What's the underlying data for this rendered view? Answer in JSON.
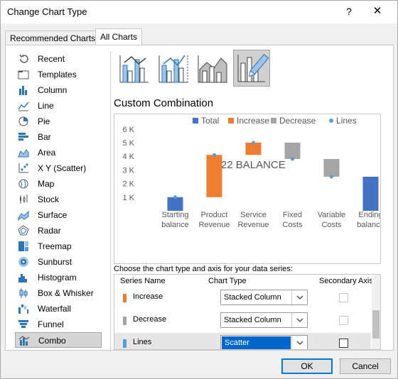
{
  "window": {
    "title": "Change Chart Type",
    "help": "?",
    "close": "✕"
  },
  "tabs": [
    {
      "label": "Recommended Charts"
    },
    {
      "label": "All Charts"
    }
  ],
  "sidebar": {
    "items": [
      {
        "label": "Recent",
        "icon": "recent-icon"
      },
      {
        "label": "Templates",
        "icon": "templates-icon"
      },
      {
        "label": "Column",
        "icon": "column-chart-icon"
      },
      {
        "label": "Line",
        "icon": "line-chart-icon"
      },
      {
        "label": "Pie",
        "icon": "pie-chart-icon"
      },
      {
        "label": "Bar",
        "icon": "bar-chart-icon"
      },
      {
        "label": "Area",
        "icon": "area-chart-icon"
      },
      {
        "label": "X Y (Scatter)",
        "icon": "scatter-chart-icon"
      },
      {
        "label": "Map",
        "icon": "map-chart-icon"
      },
      {
        "label": "Stock",
        "icon": "stock-chart-icon"
      },
      {
        "label": "Surface",
        "icon": "surface-chart-icon"
      },
      {
        "label": "Radar",
        "icon": "radar-chart-icon"
      },
      {
        "label": "Treemap",
        "icon": "treemap-chart-icon"
      },
      {
        "label": "Sunburst",
        "icon": "sunburst-chart-icon"
      },
      {
        "label": "Histogram",
        "icon": "histogram-chart-icon"
      },
      {
        "label": "Box & Whisker",
        "icon": "box-whisker-chart-icon"
      },
      {
        "label": "Waterfall",
        "icon": "waterfall-chart-icon"
      },
      {
        "label": "Funnel",
        "icon": "funnel-chart-icon"
      },
      {
        "label": "Combo",
        "icon": "combo-chart-icon"
      }
    ],
    "selected": "Combo"
  },
  "subtypes": [
    {
      "name": "clustered-column-line",
      "selected": false
    },
    {
      "name": "clustered-column-line-secondary-axis",
      "selected": false
    },
    {
      "name": "stacked-area-clustered-column",
      "selected": false
    },
    {
      "name": "custom-combination",
      "selected": true
    }
  ],
  "section_title": "Custom Combination",
  "chart_data": {
    "type": "bar",
    "title": "2022 BALANCE",
    "legend": [
      "Total",
      "Increase",
      "Decrease",
      "Lines"
    ],
    "legend_position": "top",
    "categories": [
      "Starting balance",
      "Product Revenue",
      "Service Revenue",
      "Fixed Costs",
      "Variable Costs",
      "Ending balance"
    ],
    "y_tick_labels": [
      "1 K",
      "2 K",
      "3 K",
      "4 K",
      "5 K",
      "6 K"
    ],
    "ylim": [
      0,
      6000
    ],
    "grid": false,
    "series": [
      {
        "name": "Total",
        "base": [
          0,
          null,
          null,
          null,
          null,
          0
        ],
        "values": [
          1000,
          null,
          null,
          null,
          null,
          2500
        ]
      },
      {
        "name": "Increase",
        "base": [
          null,
          1000,
          4100,
          null,
          null,
          null
        ],
        "values": [
          null,
          3100,
          900,
          null,
          null,
          null
        ]
      },
      {
        "name": "Decrease",
        "base": [
          null,
          null,
          null,
          3800,
          2500,
          null
        ],
        "values": [
          null,
          null,
          null,
          1200,
          1300,
          null
        ]
      },
      {
        "name": "Lines",
        "values": [
          1000,
          4100,
          5000,
          3800,
          2500,
          null
        ]
      }
    ],
    "colors": {
      "Total": "#4472c4",
      "Increase": "#ed7d31",
      "Decrease": "#a5a5a5",
      "Lines": "#5b9bd5"
    }
  },
  "series_section": {
    "label": "Choose the chart type and axis for your data series:",
    "headers": {
      "name": "Series Name",
      "type": "Chart Type",
      "axis": "Secondary Axis"
    },
    "rows": [
      {
        "name": "Increase",
        "color": "#ed7d31",
        "chart_type": "Stacked Column",
        "secondary_axis": false,
        "axis_enabled": false,
        "selected": false
      },
      {
        "name": "Decrease",
        "color": "#a5a5a5",
        "chart_type": "Stacked Column",
        "secondary_axis": false,
        "axis_enabled": false,
        "selected": false
      },
      {
        "name": "Lines",
        "color": "#5b9bd5",
        "chart_type": "Scatter",
        "secondary_axis": false,
        "axis_enabled": true,
        "selected": true
      }
    ]
  },
  "buttons": {
    "ok": "OK",
    "cancel": "Cancel"
  }
}
